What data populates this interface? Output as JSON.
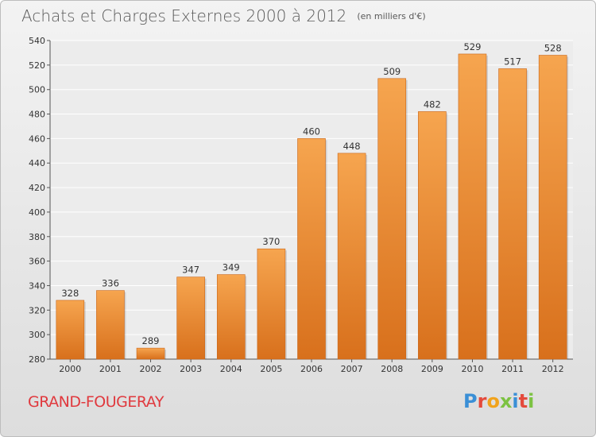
{
  "header": {
    "title": "Achats et Charges Externes 2000 à 2012",
    "unit": "(en milliers d'€)"
  },
  "footer": {
    "commune": "GRAND-FOUGERAY",
    "brand": [
      "P",
      "r",
      "o",
      "x",
      "i",
      "t",
      "i"
    ]
  },
  "colors": {
    "bar_light": "#f6a54f",
    "bar_dark": "#d8701c",
    "commune": "#e0393e",
    "brand": [
      "#3a8fd6",
      "#e44a3c",
      "#f1a31c",
      "#7cc242",
      "#3a8fd6",
      "#e44a3c",
      "#7cc242"
    ]
  },
  "chart_data": {
    "type": "bar",
    "title": "Achats et Charges Externes 2000 à 2012",
    "subtitle": "(en milliers d'€)",
    "xlabel": "",
    "ylabel": "",
    "categories": [
      "2000",
      "2001",
      "2002",
      "2003",
      "2004",
      "2005",
      "2006",
      "2007",
      "2008",
      "2009",
      "2010",
      "2011",
      "2012"
    ],
    "values": [
      328,
      336,
      289,
      347,
      349,
      370,
      460,
      448,
      509,
      482,
      529,
      517,
      528
    ],
    "ylim": [
      280,
      540
    ],
    "yticks": [
      280,
      300,
      320,
      340,
      360,
      380,
      400,
      420,
      440,
      460,
      480,
      500,
      520,
      540
    ],
    "grid": true,
    "legend": "none"
  }
}
